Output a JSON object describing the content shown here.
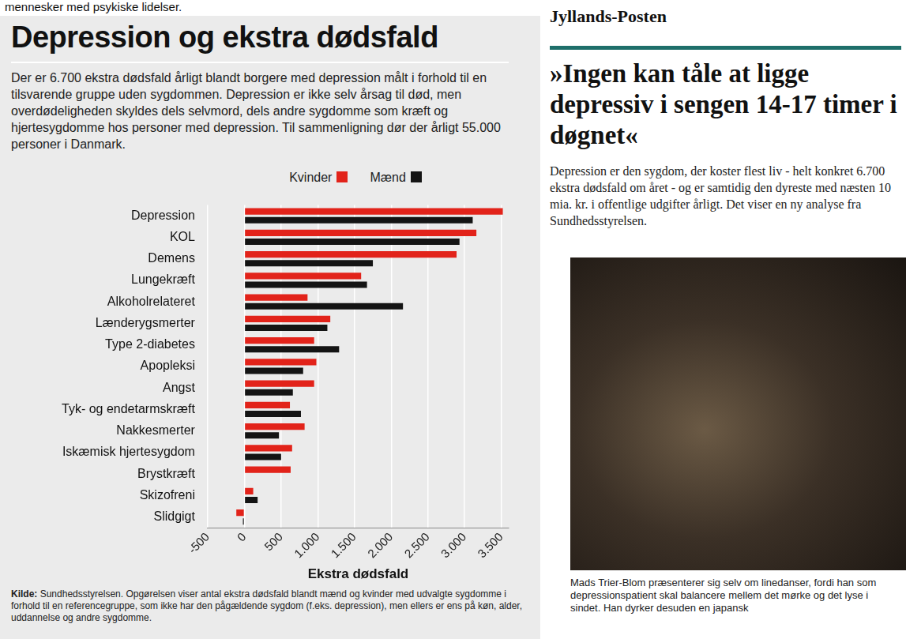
{
  "chart_data": {
    "type": "bar",
    "orientation": "horizontal",
    "title": "Depression og ekstra dødsfald",
    "subtitle": "Der er 6.700 ekstra dødsfald årligt blandt borgere med depression målt i forhold til en tilsvarende gruppe uden sygdommen. Depression er ikke selv årsag til død, men overdødeligheden skyldes dels selvmord, dels andre sygdomme som kræft og hjertesygdomme hos personer med depression. Til sammenligning dør der årligt 55.000 personer i Danmark.",
    "xlabel": "Ekstra dødsfald",
    "annotations": [
      "Kilde:",
      "Sundhedsstyrelsen. Opgørelsen viser antal ekstra dødsfald blandt mænd og kvinder med udvalgte sygdomme i forhold til en referencegruppe, som ikke har den pågældende sygdom (f.eks. depression), men ellers er ens på køn, alder, uddannelse og andre sygdomme."
    ],
    "categories": [
      "Depression",
      "KOL",
      "Demens",
      "Lungekræft",
      "Alkoholrelateret",
      "Lænderygsmerter",
      "Type 2-diabetes",
      "Apopleksi",
      "Angst",
      "Tyk- og endetarmskræft",
      "Nakkesmerter",
      "Iskæmisk hjertesygdom",
      "Brystkræft",
      "Skizofreni",
      "Slidgigt"
    ],
    "series": [
      {
        "name": "Kvinder",
        "color": "#e2231a",
        "values": [
          3520,
          3160,
          2890,
          1590,
          860,
          1170,
          950,
          980,
          950,
          620,
          820,
          650,
          630,
          120,
          -110
        ]
      },
      {
        "name": "Mænd",
        "color": "#141414",
        "values": [
          3110,
          2930,
          1750,
          1670,
          2160,
          1130,
          1290,
          800,
          660,
          770,
          470,
          500,
          0,
          180,
          -20
        ]
      }
    ],
    "xlim": [
      -500,
      3600
    ],
    "xticks": [
      -500,
      0,
      500,
      {
        "value": 1000,
        "label": "1.000"
      },
      {
        "value": 1500,
        "label": "1.500"
      },
      {
        "value": 2000,
        "label": "2.000"
      },
      {
        "value": 2500,
        "label": "2.500"
      },
      {
        "value": 3000,
        "label": "3.000"
      },
      {
        "value": 3500,
        "label": "3.500"
      }
    ],
    "grid": true,
    "legend": "top",
    "data_labels": false
  },
  "page_fragment": "mennesker med psykiske lidelser.",
  "article": {
    "publication": "Jyllands-Posten",
    "headline": "»Ingen kan tåle at ligge depressiv i sengen 14-17 timer i døgnet«",
    "lede": "Depression er den sygdom, der koster flest liv - helt konkret 6.700 ekstra dødsfald om året - og er samtidig den dyreste med næsten 10 mia. kr. i offentlige udgifter årligt. Det viser en ny analyse fra Sundhedsstyrelsen.",
    "caption": "Mads Trier-Blom præsenterer sig selv om linedanser, fordi han som depressionspatient skal balancere mellem det mørke og det lyse i sindet. Han dyrker desuden en japansk"
  }
}
